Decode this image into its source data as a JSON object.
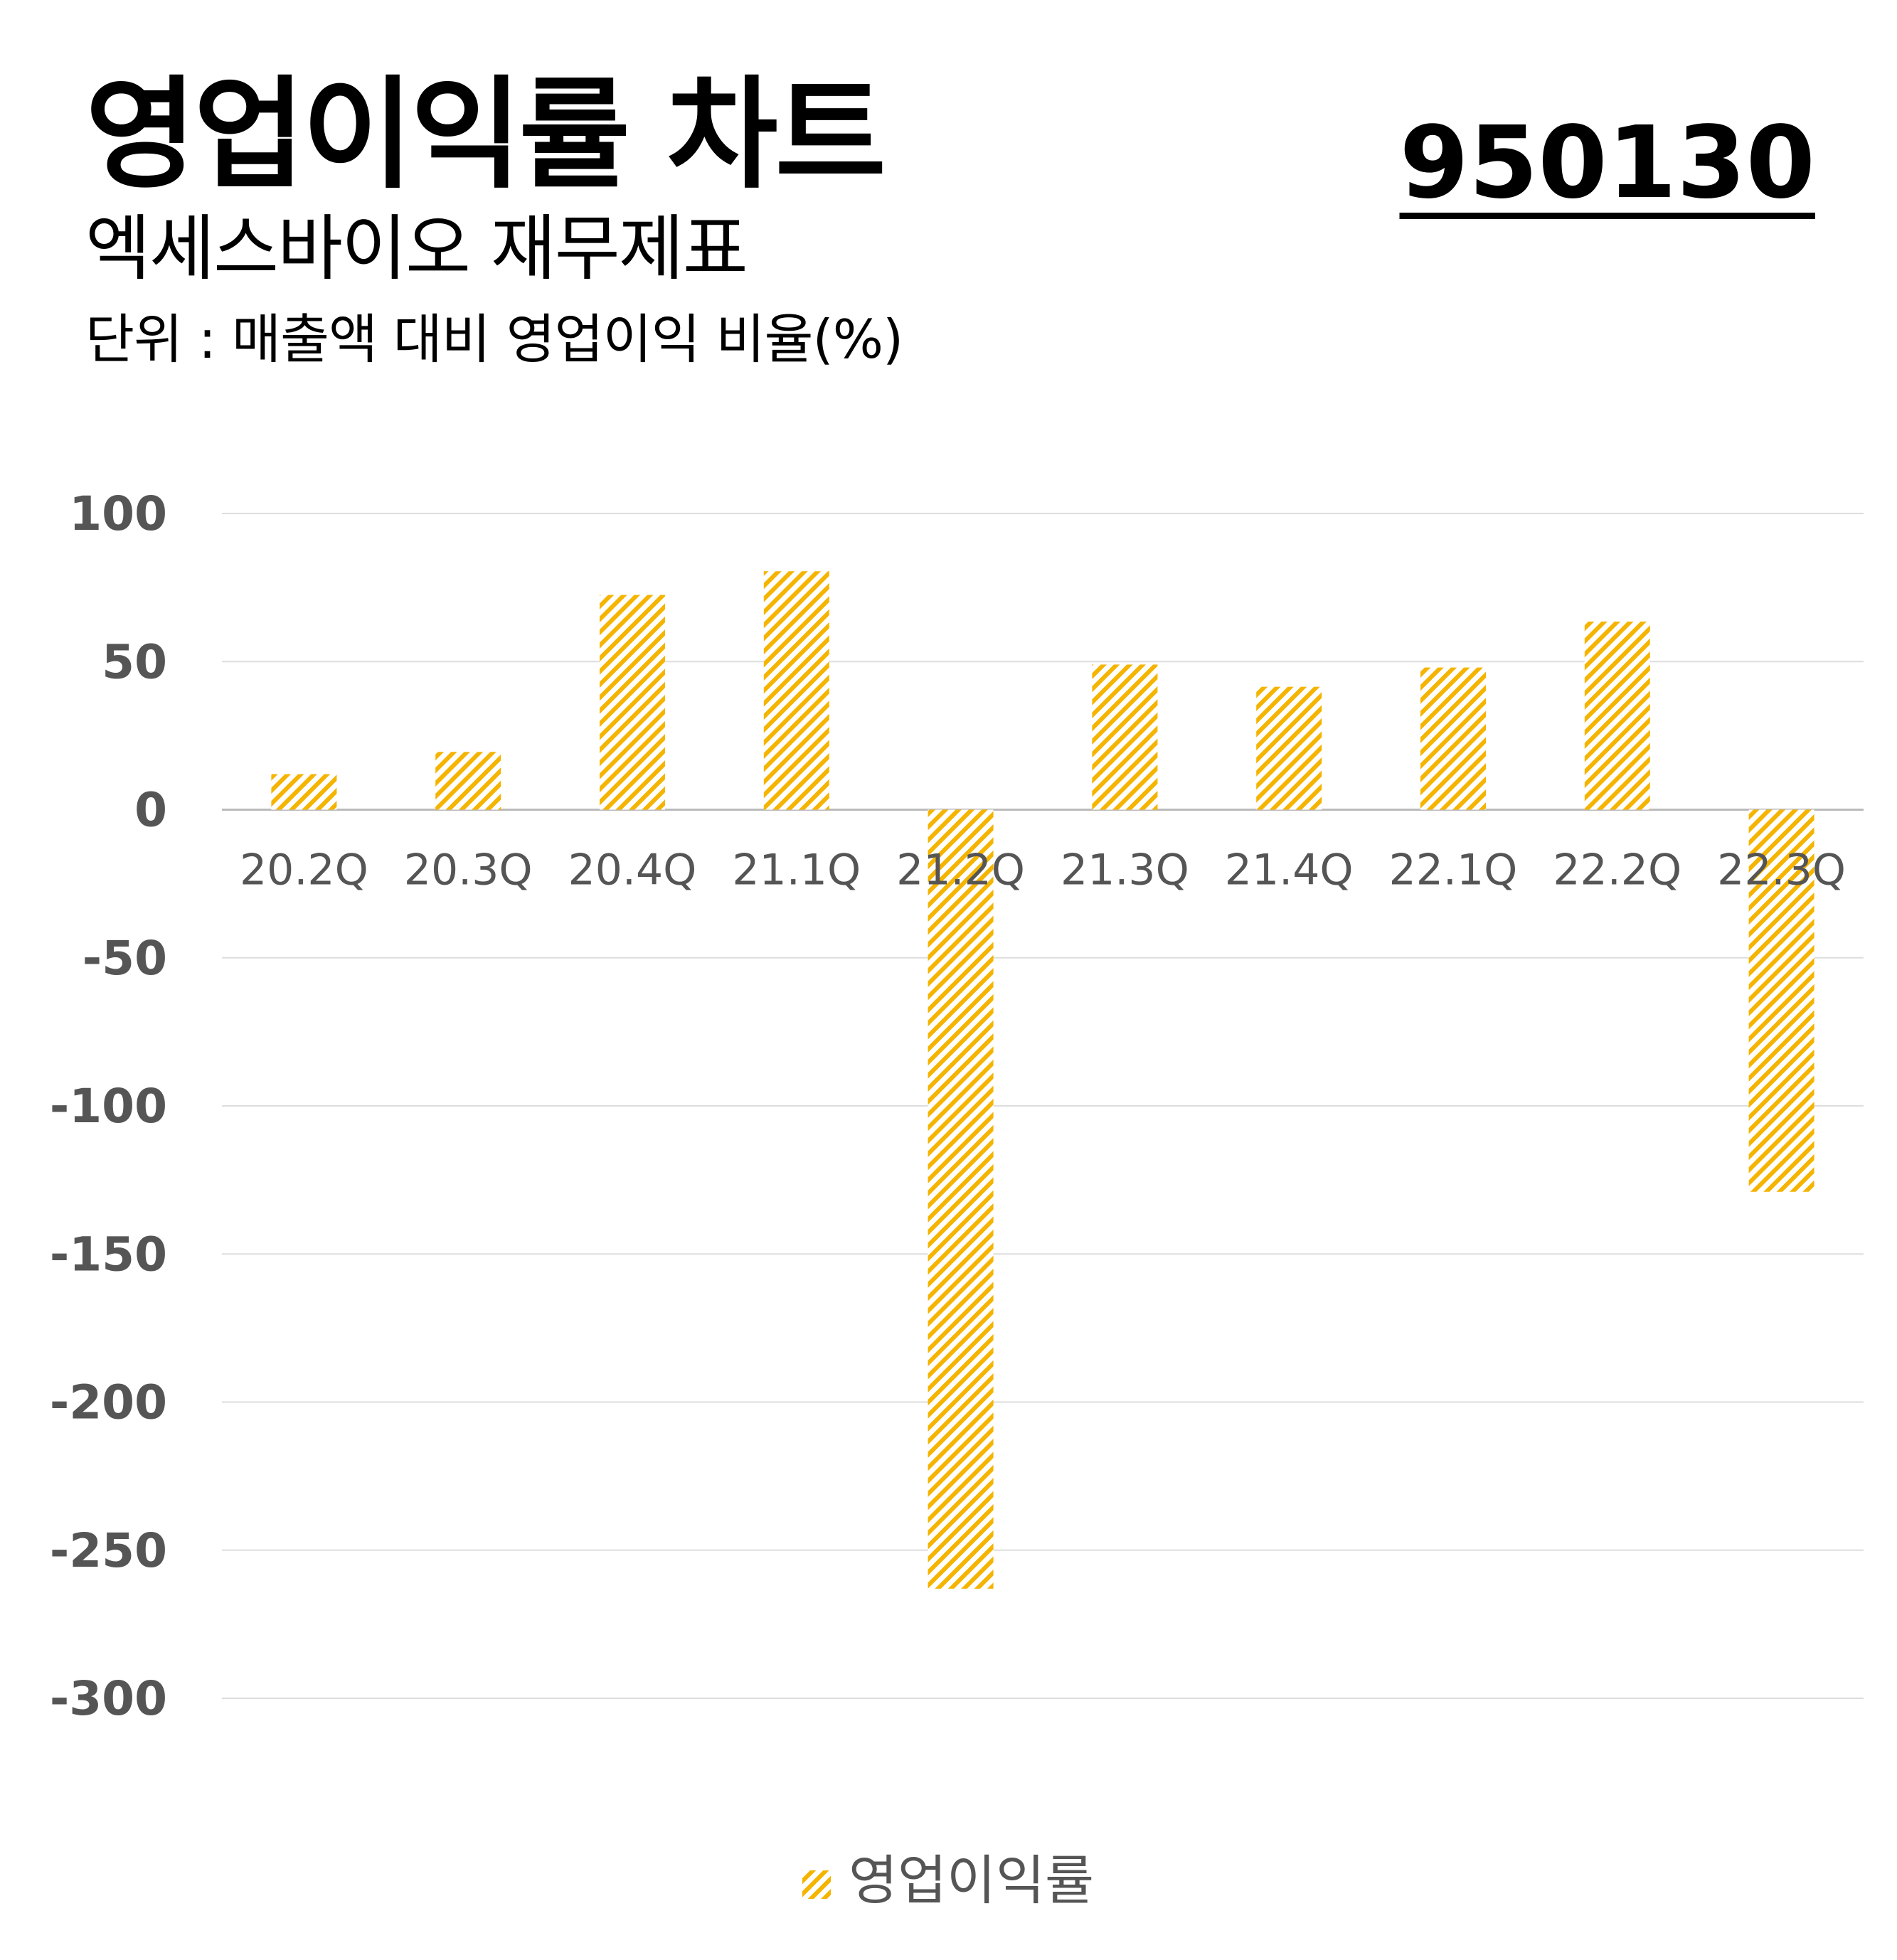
{
  "title": "영업이익률 차트",
  "ticker": "950130",
  "subtitle": "엑세스바이오 재무제표",
  "unit_note": "단위 : 매출액 대비 영업이익 비율(%)",
  "colors": {
    "bar": "#F5B400",
    "grid": "#DDDDDD",
    "zero_line": "#BBBBBB",
    "tick_text": "#555555"
  },
  "chart_data": {
    "type": "bar",
    "categories": [
      "20.2Q",
      "20.3Q",
      "20.4Q",
      "21.1Q",
      "21.2Q",
      "21.3Q",
      "21.4Q",
      "22.1Q",
      "22.2Q",
      "22.3Q"
    ],
    "series": [
      {
        "name": "영업이익률",
        "values": [
          12,
          19.5,
          72.5,
          80.5,
          -263,
          49,
          41.5,
          48,
          63.5,
          -129
        ]
      }
    ],
    "ylim": [
      -300,
      100
    ],
    "yticks": [
      100,
      50,
      0,
      -50,
      -100,
      -150,
      -200,
      -250,
      -300
    ],
    "grid": true,
    "fill_pattern": "diagonal-hatch",
    "legend_position": "bottom-center"
  }
}
